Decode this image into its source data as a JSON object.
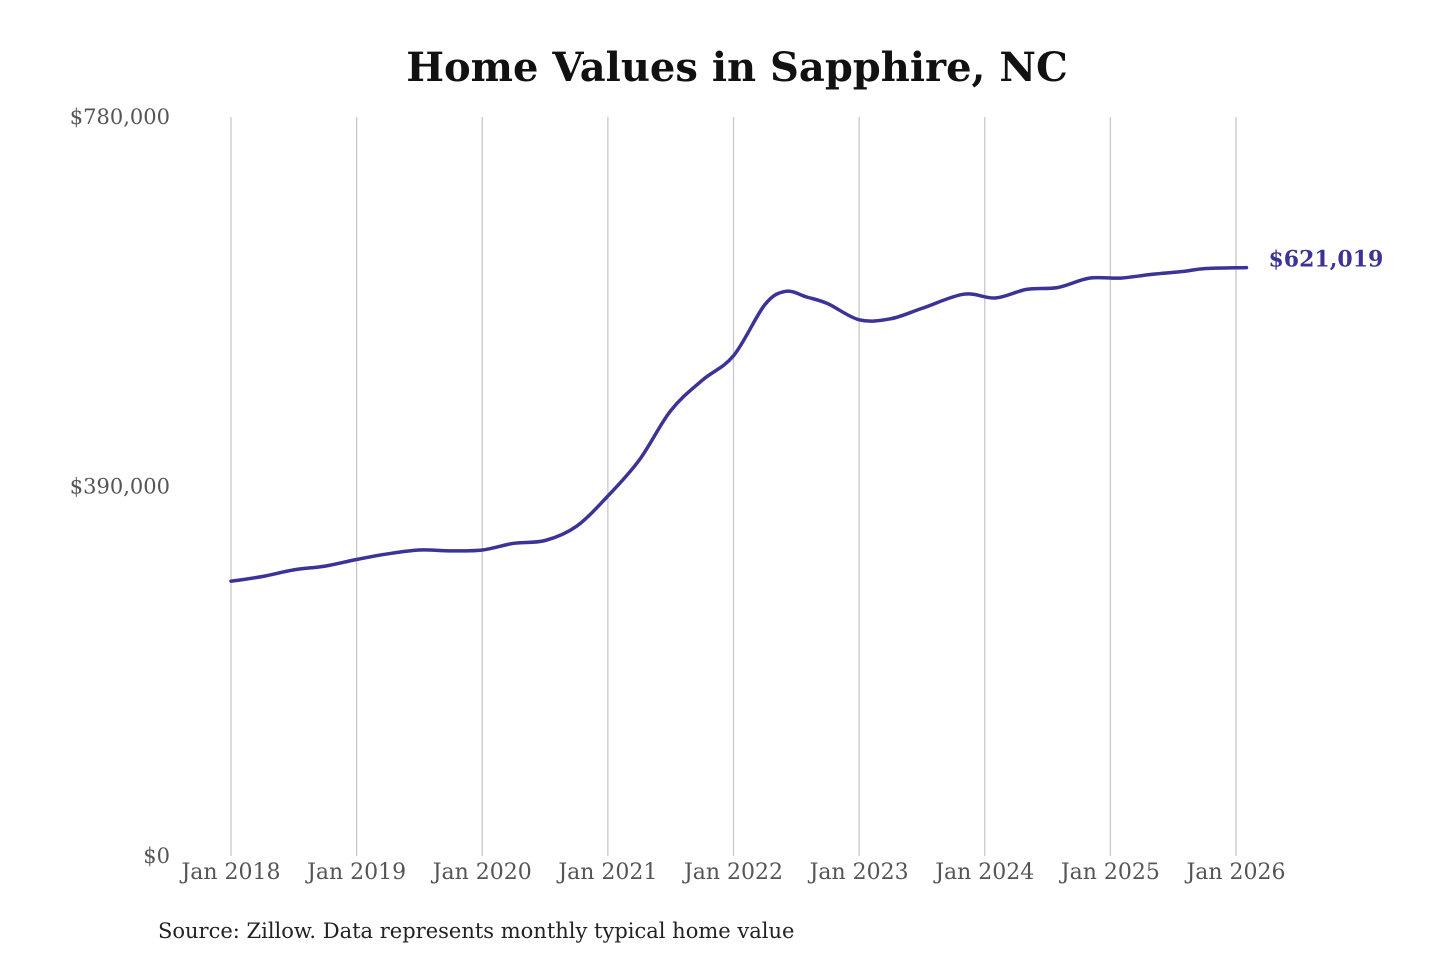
{
  "chart_data": {
    "type": "line",
    "title": "Home Values in Sapphire, NC",
    "xlabel": "",
    "ylabel": "",
    "source": "Source: Zillow. Data represents monthly typical home value",
    "ylim": [
      0,
      780000
    ],
    "y_ticks": [
      {
        "value": 0,
        "label": "$0"
      },
      {
        "value": 390000,
        "label": "$390,000"
      },
      {
        "value": 780000,
        "label": "$780,000"
      }
    ],
    "x_range": [
      "2018-01",
      "2026-02"
    ],
    "x_ticks": [
      {
        "date": "2018-01",
        "label": "Jan 2018"
      },
      {
        "date": "2019-01",
        "label": "Jan 2019"
      },
      {
        "date": "2020-01",
        "label": "Jan 2020"
      },
      {
        "date": "2021-01",
        "label": "Jan 2021"
      },
      {
        "date": "2022-01",
        "label": "Jan 2022"
      },
      {
        "date": "2023-01",
        "label": "Jan 2023"
      },
      {
        "date": "2024-01",
        "label": "Jan 2024"
      },
      {
        "date": "2025-01",
        "label": "Jan 2025"
      },
      {
        "date": "2026-01",
        "label": "Jan 2026"
      }
    ],
    "vertical_grid": true,
    "horizontal_grid": false,
    "line_color": "#3b3395",
    "end_label": "$621,019",
    "series": [
      {
        "points": [
          [
            "2018-01",
            290000
          ],
          [
            "2018-04",
            295000
          ],
          [
            "2018-07",
            302000
          ],
          [
            "2018-10",
            306000
          ],
          [
            "2019-01",
            313000
          ],
          [
            "2019-04",
            319000
          ],
          [
            "2019-07",
            323000
          ],
          [
            "2019-10",
            322000
          ],
          [
            "2020-01",
            323000
          ],
          [
            "2020-04",
            330000
          ],
          [
            "2020-07",
            333000
          ],
          [
            "2020-10",
            348000
          ],
          [
            "2021-01",
            380000
          ],
          [
            "2021-04",
            418000
          ],
          [
            "2021-07",
            470000
          ],
          [
            "2021-10",
            502000
          ],
          [
            "2022-01",
            528000
          ],
          [
            "2022-04",
            582000
          ],
          [
            "2022-06",
            596000
          ],
          [
            "2022-08",
            590000
          ],
          [
            "2022-10",
            583000
          ],
          [
            "2023-01",
            566000
          ],
          [
            "2023-04",
            567000
          ],
          [
            "2023-07",
            578000
          ],
          [
            "2023-11",
            593000
          ],
          [
            "2024-02",
            589000
          ],
          [
            "2024-05",
            598000
          ],
          [
            "2024-08",
            600000
          ],
          [
            "2024-11",
            610000
          ],
          [
            "2025-02",
            610000
          ],
          [
            "2025-05",
            614000
          ],
          [
            "2025-08",
            617000
          ],
          [
            "2025-10",
            620000
          ],
          [
            "2026-02",
            621019
          ]
        ]
      }
    ]
  }
}
